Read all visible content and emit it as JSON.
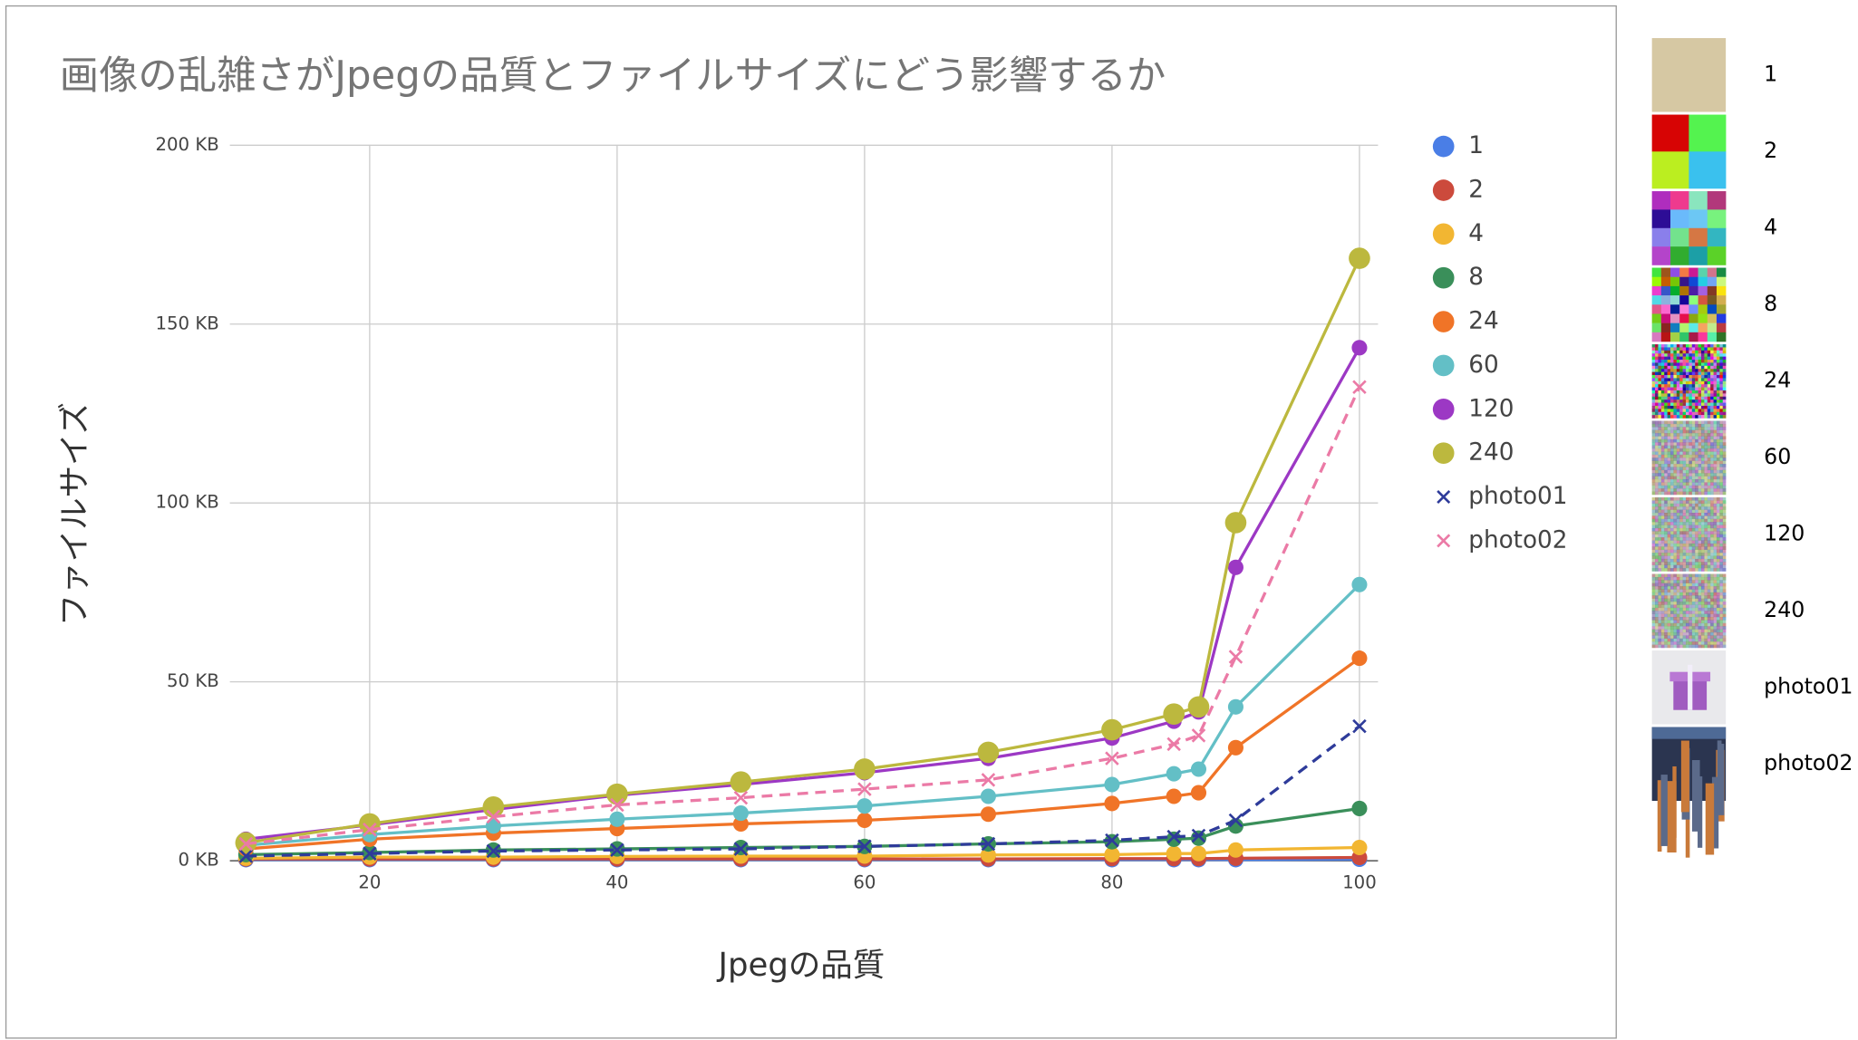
{
  "chart_data": {
    "type": "line",
    "title": "画像の乱雑さがJpegの品質とファイルサイズにどう影響するか",
    "x_label": "Jpegの品質",
    "y_label": "ファイルサイズ",
    "x": [
      10,
      20,
      30,
      40,
      50,
      60,
      70,
      80,
      85,
      87,
      90,
      100
    ],
    "xlim": [
      8.7,
      101.5
    ],
    "xticks": [
      20,
      40,
      60,
      80,
      100
    ],
    "ylim": [
      0,
      200
    ],
    "yticks": [
      {
        "value": 0,
        "label": "0 KB"
      },
      {
        "value": 50,
        "label": "50 KB"
      },
      {
        "value": 100,
        "label": "100 KB"
      },
      {
        "value": 150,
        "label": "150 KB"
      },
      {
        "value": 200,
        "label": "200 KB"
      }
    ],
    "grid": true,
    "legend": "right",
    "series": [
      {
        "name": "1",
        "color": "#4a7ee6",
        "marker": "circle",
        "dashed": false,
        "values": [
          0.3,
          0.3,
          0.3,
          0.3,
          0.3,
          0.3,
          0.3,
          0.3,
          0.3,
          0.3,
          0.3,
          0.4
        ]
      },
      {
        "name": "2",
        "color": "#cc4a3c",
        "marker": "circle",
        "dashed": false,
        "values": [
          0.5,
          0.5,
          0.5,
          0.5,
          0.5,
          0.5,
          0.5,
          0.6,
          0.6,
          0.6,
          0.7,
          0.9
        ]
      },
      {
        "name": "4",
        "color": "#f2b632",
        "marker": "circle",
        "dashed": false,
        "values": [
          0.7,
          1,
          1,
          1.2,
          1.3,
          1.3,
          1.6,
          1.7,
          2,
          2,
          3,
          3.7
        ]
      },
      {
        "name": "8",
        "color": "#3a8f5a",
        "marker": "circle",
        "dashed": false,
        "values": [
          1.7,
          2.3,
          3,
          3.3,
          3.7,
          4,
          4.7,
          5.3,
          6,
          6.3,
          9.7,
          14.6
        ]
      },
      {
        "name": "24",
        "color": "#f07427",
        "marker": "circle",
        "dashed": false,
        "values": [
          3.3,
          6,
          7.7,
          9,
          10.3,
          11.3,
          13,
          16,
          18,
          19,
          31.6,
          56.6
        ]
      },
      {
        "name": "60",
        "color": "#63bfc6",
        "marker": "circle",
        "dashed": false,
        "values": [
          4.3,
          7.3,
          9.7,
          11.6,
          13.3,
          15.3,
          18,
          21.3,
          24.3,
          25.6,
          43,
          77.2
        ]
      },
      {
        "name": "120",
        "color": "#9c38c4",
        "marker": "circle",
        "dashed": false,
        "values": [
          6,
          10,
          14.3,
          18.3,
          21.3,
          24.6,
          28.6,
          34.3,
          39,
          41.6,
          82,
          143.4
        ]
      },
      {
        "name": "240",
        "color": "#bcb83e",
        "marker": "circle",
        "dashed": false,
        "values": [
          5,
          10.3,
          15,
          18.6,
          22,
          25.6,
          30.3,
          36.6,
          41,
          43,
          94.5,
          168.4
        ]
      },
      {
        "name": "photo01",
        "color": "#2e3b9a",
        "marker": "x",
        "dashed": true,
        "values": [
          1.3,
          2,
          2.7,
          3,
          3.3,
          4,
          4.7,
          5.7,
          6.7,
          7,
          11.3,
          37.6
        ]
      },
      {
        "name": "photo02",
        "color": "#eb7aa6",
        "marker": "x",
        "dashed": true,
        "values": [
          4.7,
          8.7,
          12.3,
          15.6,
          17.6,
          20,
          22.6,
          28.6,
          32.6,
          35,
          57,
          132.4
        ]
      }
    ]
  }
}
